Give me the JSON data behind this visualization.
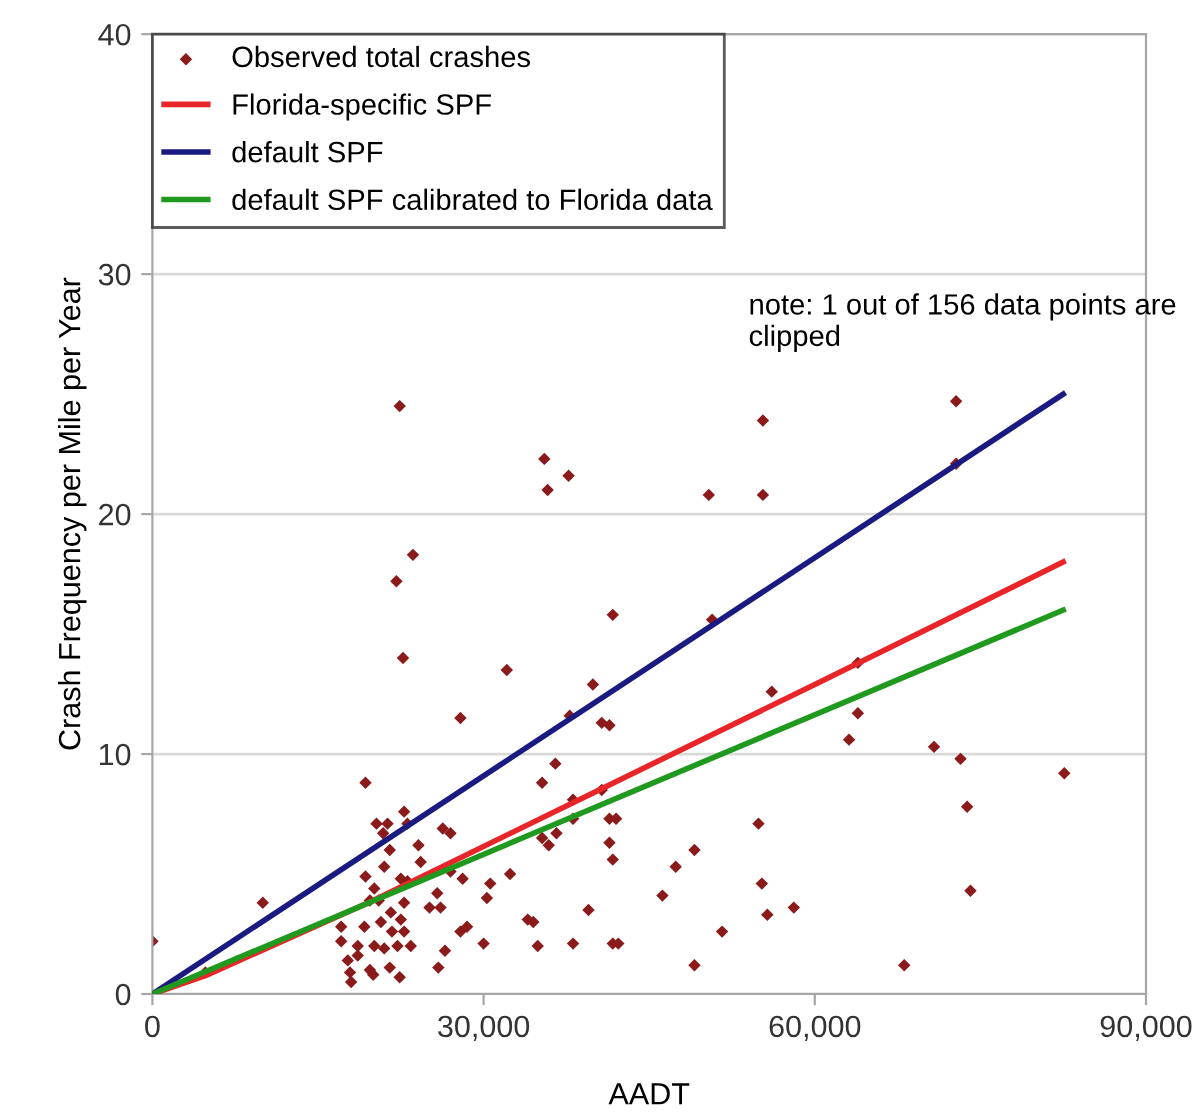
{
  "chart_data": {
    "type": "scatter",
    "xlabel": "AADT",
    "ylabel": "Crash Frequency per Mile per Year",
    "xlim": [
      0,
      90000
    ],
    "xticks": [
      {
        "value": 0,
        "label": "0"
      },
      {
        "value": 30000,
        "label": "30,000"
      },
      {
        "value": 60000,
        "label": "60,000"
      },
      {
        "value": 90000,
        "label": "90,000"
      }
    ],
    "ylim": [
      0,
      40
    ],
    "yticks": [
      0,
      10,
      20,
      30,
      40
    ],
    "grid": "y",
    "legend": "top left",
    "annotations": [
      "note: 1 out of 156 data points are clipped"
    ],
    "series": [
      {
        "name": "Observed total crashes",
        "marker": "diamond",
        "color": "#8b1a1a",
        "x": [
          0,
          4800,
          10000,
          22400,
          23600,
          22100,
          22700,
          32100,
          27900,
          35500,
          35800,
          37700,
          19300,
          20300,
          21300,
          22800,
          23100,
          20900,
          21500,
          24100,
          24300,
          21000,
          19300,
          20100,
          22500,
          23100,
          19700,
          20500,
          22800,
          17100,
          17100,
          18600,
          20100,
          21000,
          22200,
          23400,
          19200,
          20700,
          22500,
          22800,
          17700,
          17900,
          18000,
          19700,
          20000,
          21500,
          22400,
          18600,
          21700,
          21600,
          26300,
          27000,
          27000,
          25100,
          25800,
          26100,
          26500,
          25900,
          28100,
          27900,
          28500,
          30300,
          30600,
          30000,
          32400,
          34000,
          34500,
          34900,
          38100,
          39500,
          41700,
          35300,
          35300,
          35900,
          36500,
          36600,
          37800,
          38100,
          38100,
          39900,
          40700,
          41400,
          41400,
          41400,
          41700,
          41700,
          72800,
          72800,
          55300,
          55300,
          50400,
          50700,
          56100,
          63900,
          63900,
          63100,
          70800,
          73200,
          82600,
          73800,
          74100,
          54900,
          55200,
          55700,
          58100,
          51600,
          49100,
          47400,
          46200,
          49100,
          68100,
          40700,
          42000,
          42200
        ],
        "values": [
          2.2,
          0.9,
          3.8,
          24.5,
          18.3,
          17.2,
          14.0,
          13.5,
          11.5,
          22.3,
          21.0,
          21.6,
          8.8,
          7.1,
          7.1,
          7.6,
          7.1,
          6.7,
          6.0,
          6.2,
          5.5,
          5.3,
          4.9,
          4.4,
          4.8,
          4.7,
          3.9,
          3.9,
          3.8,
          2.8,
          2.2,
          2.0,
          2.0,
          1.9,
          2.0,
          2.0,
          2.8,
          3.0,
          3.1,
          2.6,
          1.4,
          0.9,
          0.5,
          1.0,
          0.8,
          1.1,
          0.7,
          1.6,
          2.6,
          3.4,
          6.9,
          6.7,
          5.1,
          3.6,
          4.2,
          3.6,
          1.8,
          1.1,
          4.8,
          2.6,
          2.8,
          4.0,
          4.6,
          2.1,
          5.0,
          3.1,
          3.0,
          2.0,
          2.1,
          3.5,
          2.1,
          8.8,
          6.5,
          6.2,
          9.6,
          6.7,
          11.6,
          8.1,
          7.3,
          12.9,
          11.3,
          11.2,
          7.3,
          6.3,
          15.8,
          5.6,
          24.7,
          22.1,
          23.9,
          20.8,
          20.8,
          15.6,
          12.6,
          13.8,
          11.7,
          10.6,
          10.3,
          9.8,
          9.2,
          7.8,
          4.3,
          7.1,
          4.6,
          3.3,
          3.6,
          2.6,
          6.0,
          5.3,
          4.1,
          1.2,
          1.2,
          8.5,
          7.3,
          2.1
        ]
      },
      {
        "name": "Florida-specific SPF",
        "type": "line",
        "color": "#e8262a",
        "x": [
          0,
          5000,
          20000,
          40000,
          60000,
          82500
        ],
        "values": [
          0,
          0.8,
          3.9,
          8.4,
          12.9,
          18
        ]
      },
      {
        "name": "default SPF",
        "type": "line",
        "color": "#1a1a80",
        "x": [
          0,
          82500
        ],
        "values": [
          0,
          25
        ]
      },
      {
        "name": "default SPF calibrated to Florida data",
        "type": "line",
        "color": "#1f9a1f",
        "x": [
          0,
          82500
        ],
        "values": [
          0,
          16
        ]
      }
    ]
  }
}
